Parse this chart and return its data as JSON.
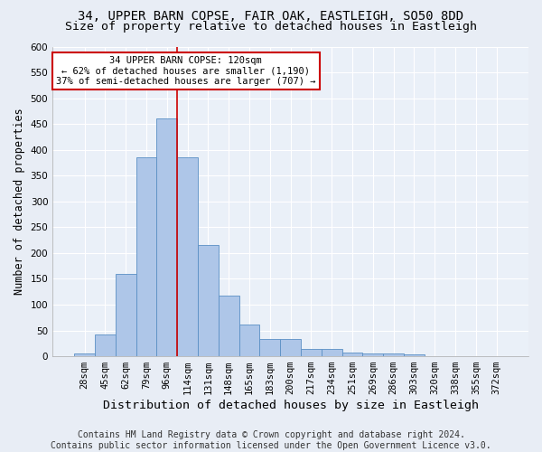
{
  "title_line1": "34, UPPER BARN COPSE, FAIR OAK, EASTLEIGH, SO50 8DD",
  "title_line2": "Size of property relative to detached houses in Eastleigh",
  "xlabel": "Distribution of detached houses by size in Eastleigh",
  "ylabel": "Number of detached properties",
  "categories": [
    "28sqm",
    "45sqm",
    "62sqm",
    "79sqm",
    "96sqm",
    "114sqm",
    "131sqm",
    "148sqm",
    "165sqm",
    "183sqm",
    "200sqm",
    "217sqm",
    "234sqm",
    "251sqm",
    "269sqm",
    "286sqm",
    "303sqm",
    "320sqm",
    "338sqm",
    "355sqm",
    "372sqm"
  ],
  "values": [
    5,
    42,
    160,
    385,
    460,
    385,
    215,
    118,
    62,
    33,
    33,
    14,
    14,
    8,
    5,
    5,
    3,
    1,
    1,
    0,
    0
  ],
  "bar_color": "#aec6e8",
  "bar_edge_color": "#5a8fc4",
  "vertical_line_x": 4.5,
  "vertical_line_color": "#cc0000",
  "annotation_text": "34 UPPER BARN COPSE: 120sqm\n← 62% of detached houses are smaller (1,190)\n37% of semi-detached houses are larger (707) →",
  "annotation_box_color": "#ffffff",
  "annotation_box_edge_color": "#cc0000",
  "ylim": [
    0,
    600
  ],
  "yticks": [
    0,
    50,
    100,
    150,
    200,
    250,
    300,
    350,
    400,
    450,
    500,
    550,
    600
  ],
  "footer_line1": "Contains HM Land Registry data © Crown copyright and database right 2024.",
  "footer_line2": "Contains public sector information licensed under the Open Government Licence v3.0.",
  "bg_color": "#e8edf5",
  "plot_bg_color": "#eaf0f8",
  "grid_color": "#ffffff",
  "title1_fontsize": 10,
  "title2_fontsize": 9.5,
  "xlabel_fontsize": 9.5,
  "ylabel_fontsize": 8.5,
  "tick_fontsize": 7.5,
  "footer_fontsize": 7
}
